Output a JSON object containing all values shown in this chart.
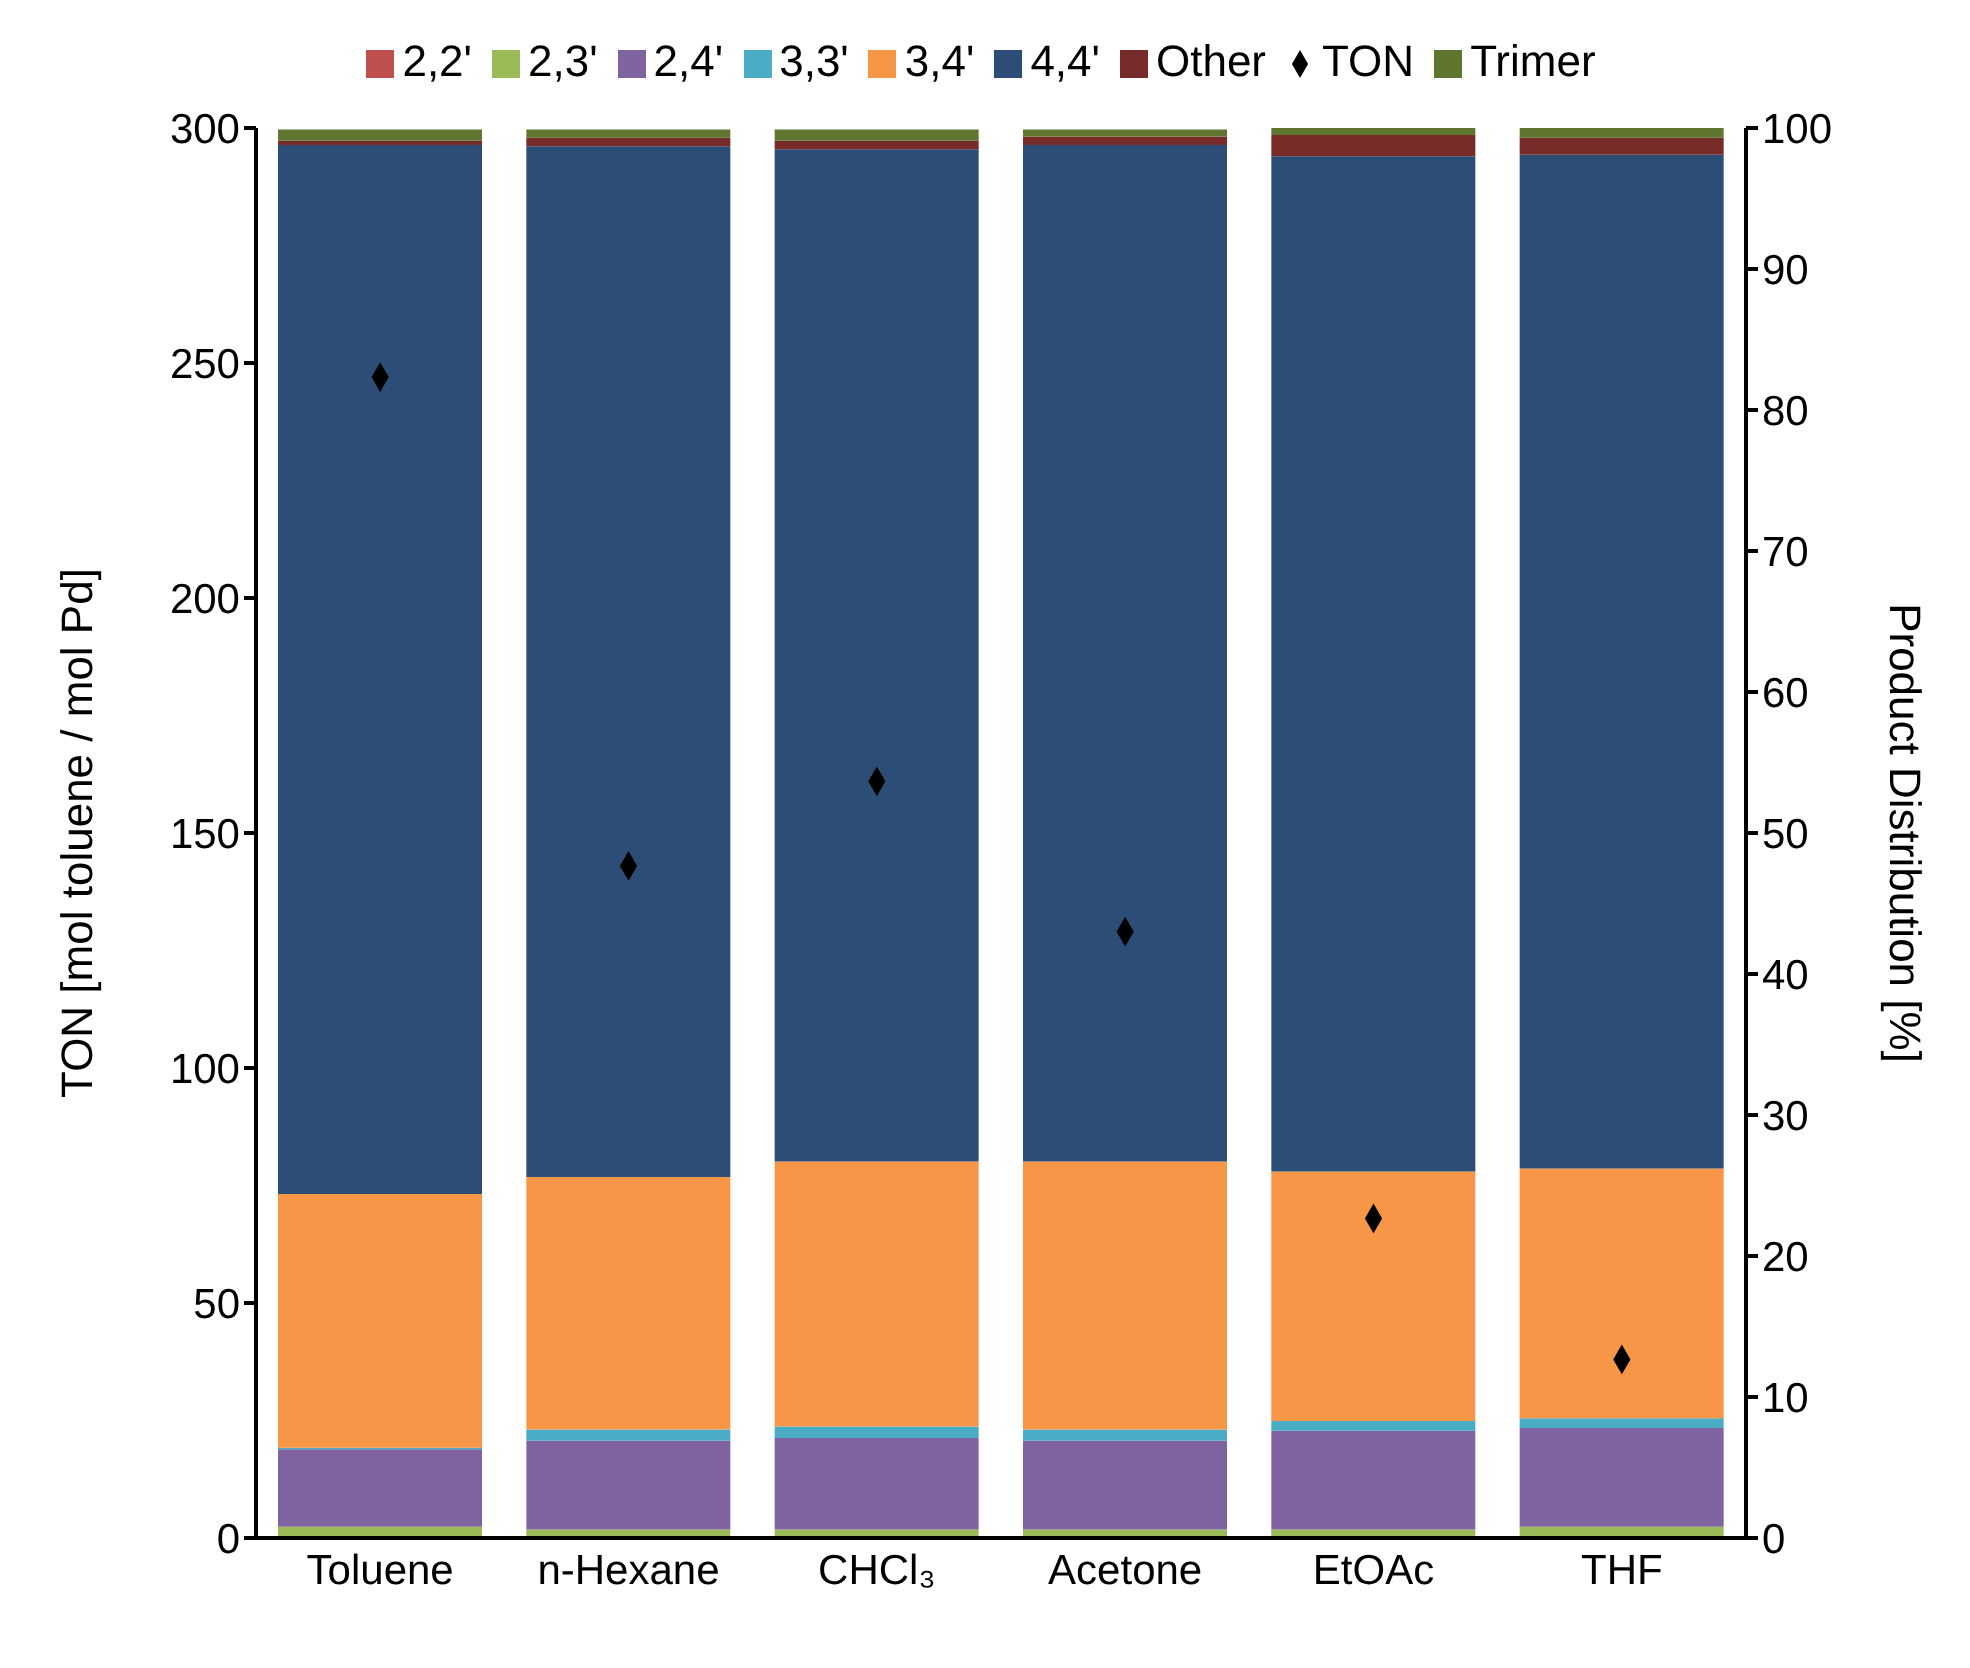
{
  "chart_data": {
    "type": "bar",
    "stacked": true,
    "categories": [
      "Toluene",
      "n-Hexane",
      "CHCl₃",
      "Acetone",
      "EtOAc",
      "THF"
    ],
    "ylabel": "TON [mol toluene / mol Pd]",
    "y2label": "Product Distribution [%]",
    "ylim": [
      0,
      300
    ],
    "yticks": [
      0,
      50,
      100,
      150,
      200,
      250,
      300
    ],
    "y2lim": [
      0,
      100
    ],
    "y2ticks": [
      0,
      10,
      20,
      30,
      40,
      50,
      60,
      70,
      80,
      90,
      100
    ],
    "legend": "top",
    "series": [
      {
        "name": "2,2'",
        "color": "#c0504d",
        "axis": "y2",
        "values": [
          null,
          null,
          null,
          null,
          null,
          null
        ]
      },
      {
        "name": "2,3'",
        "color": "#9bbb59",
        "axis": "y2",
        "values": [
          0.8,
          0.6,
          0.6,
          0.6,
          0.6,
          0.8
        ]
      },
      {
        "name": "2,4'",
        "color": "#8064a2",
        "axis": "y2",
        "values": [
          5.5,
          6.3,
          6.5,
          6.3,
          7.0,
          7.0
        ]
      },
      {
        "name": "3,3'",
        "color": "#4bacc6",
        "axis": "y2",
        "values": [
          0.1,
          0.8,
          0.8,
          0.8,
          0.7,
          0.7
        ]
      },
      {
        "name": "3,4'",
        "color": "#f79646",
        "axis": "y2",
        "values": [
          18.0,
          17.9,
          18.8,
          19.0,
          17.7,
          17.7
        ]
      },
      {
        "name": "4,4'",
        "color": "#2c4d75",
        "axis": "y2",
        "values": [
          74.4,
          73.1,
          71.8,
          72.1,
          72.0,
          71.9
        ]
      },
      {
        "name": "Other",
        "color": "#772c2a",
        "axis": "y2",
        "values": [
          0.3,
          0.6,
          0.6,
          0.6,
          1.5,
          1.2
        ]
      },
      {
        "name": "Trimer",
        "color": "#5f7530",
        "axis": "y2",
        "values": [
          0.8,
          0.6,
          0.8,
          0.5,
          0.5,
          0.7
        ]
      },
      {
        "name": "TON",
        "type": "scatter",
        "marker": "diamond",
        "color": "#000000",
        "values": [
          247,
          143,
          161,
          129,
          68,
          38
        ]
      }
    ]
  }
}
